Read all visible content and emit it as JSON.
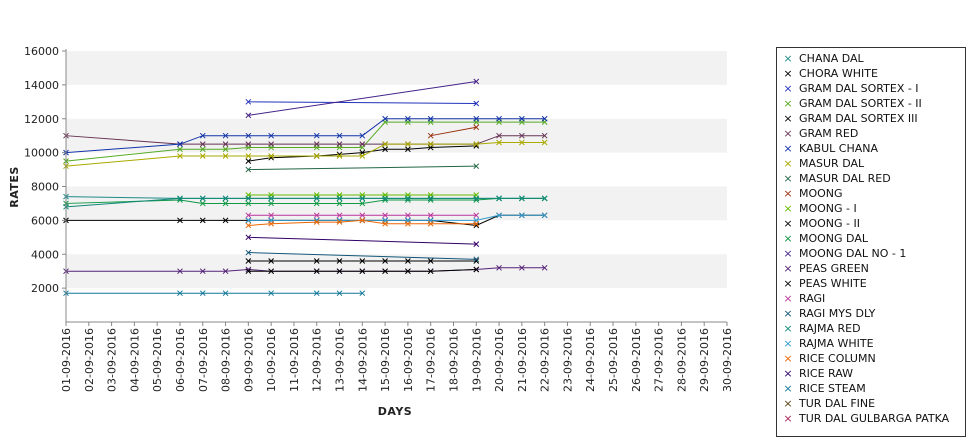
{
  "chart_data": {
    "type": "line",
    "xlabel": "DAYS",
    "ylabel": "RATES",
    "ylim": [
      0,
      16000
    ],
    "yticks": [
      2000,
      4000,
      6000,
      8000,
      10000,
      12000,
      14000,
      16000
    ],
    "grid": "alternating horizontal bands",
    "legend_position": "right",
    "categories": [
      "01-09-2016",
      "02-09-2016",
      "03-09-2016",
      "04-09-2016",
      "05-09-2016",
      "06-09-2016",
      "07-09-2016",
      "08-09-2016",
      "09-09-2016",
      "10-09-2016",
      "11-09-2016",
      "12-09-2016",
      "13-09-2016",
      "14-09-2016",
      "15-09-2016",
      "16-09-2016",
      "17-09-2016",
      "18-09-2016",
      "19-09-2016",
      "20-09-2016",
      "21-09-2016",
      "22-09-2016",
      "23-09-2016",
      "24-09-2016",
      "25-09-2016",
      "26-09-2016",
      "27-09-2016",
      "28-09-2016",
      "29-09-2016",
      "30-09-2016"
    ],
    "series": [
      {
        "name": "CHANA DAL",
        "color": "#1f8a8a",
        "values": [
          7400,
          null,
          null,
          null,
          null,
          7300,
          7300,
          7300,
          7300,
          7300,
          null,
          7300,
          7300,
          7300,
          7300,
          7300,
          7300,
          null,
          7300,
          7300,
          7300,
          7300,
          null,
          null,
          null,
          null,
          null,
          null,
          null,
          null
        ]
      },
      {
        "name": "CHORA WHITE",
        "color": "#000000",
        "values": [
          null,
          null,
          null,
          null,
          null,
          null,
          null,
          null,
          3600,
          3600,
          null,
          3600,
          3600,
          3600,
          3600,
          3600,
          3600,
          null,
          3600,
          null,
          null,
          null,
          null,
          null,
          null,
          null,
          null,
          null,
          null,
          null
        ]
      },
      {
        "name": "GRAM DAL SORTEX - I",
        "color": "#2233bb",
        "values": [
          null,
          null,
          null,
          null,
          null,
          null,
          null,
          null,
          13000,
          null,
          null,
          null,
          null,
          null,
          null,
          null,
          null,
          null,
          12900,
          null,
          null,
          null,
          null,
          null,
          null,
          null,
          null,
          null,
          null,
          null
        ]
      },
      {
        "name": "GRAM DAL SORTEX - II",
        "color": "#55aa22",
        "values": [
          9500,
          null,
          null,
          null,
          null,
          10200,
          10200,
          10200,
          10300,
          10300,
          null,
          10300,
          10300,
          10300,
          11800,
          11800,
          11800,
          null,
          11800,
          11800,
          11800,
          11800,
          null,
          null,
          null,
          null,
          null,
          null,
          null,
          null
        ]
      },
      {
        "name": "GRAM DAL SORTEX III",
        "color": "#000000",
        "values": [
          null,
          null,
          null,
          null,
          null,
          null,
          null,
          null,
          9500,
          9700,
          null,
          9800,
          9900,
          10000,
          10200,
          10200,
          10300,
          null,
          10400,
          null,
          null,
          null,
          null,
          null,
          null,
          null,
          null,
          null,
          null,
          null
        ]
      },
      {
        "name": "GRAM RED",
        "color": "#663355",
        "values": [
          11000,
          null,
          null,
          null,
          null,
          10500,
          10500,
          10500,
          10500,
          10500,
          null,
          10500,
          10500,
          10500,
          10500,
          10500,
          10500,
          null,
          10500,
          11000,
          11000,
          11000,
          null,
          null,
          null,
          null,
          null,
          null,
          null,
          null
        ]
      },
      {
        "name": "KABUL CHANA",
        "color": "#1133aa",
        "values": [
          10000,
          null,
          null,
          null,
          null,
          10500,
          11000,
          11000,
          11000,
          11000,
          null,
          11000,
          11000,
          11000,
          12000,
          12000,
          12000,
          null,
          12000,
          12000,
          12000,
          12000,
          null,
          null,
          null,
          null,
          null,
          null,
          null,
          null
        ]
      },
      {
        "name": "MASUR DAL",
        "color": "#aaaa00",
        "values": [
          9200,
          null,
          null,
          null,
          null,
          9800,
          9800,
          9800,
          9800,
          9800,
          null,
          9800,
          9800,
          9800,
          10500,
          10500,
          10500,
          null,
          10500,
          10600,
          10600,
          10600,
          null,
          null,
          null,
          null,
          null,
          null,
          null,
          null
        ]
      },
      {
        "name": "MASUR DAL RED",
        "color": "#226644",
        "values": [
          null,
          null,
          null,
          null,
          null,
          null,
          null,
          null,
          9000,
          null,
          null,
          null,
          null,
          null,
          null,
          null,
          null,
          null,
          9200,
          null,
          null,
          null,
          null,
          null,
          null,
          null,
          null,
          null,
          null,
          null
        ]
      },
      {
        "name": "MOONG",
        "color": "#993311",
        "values": [
          null,
          null,
          null,
          null,
          null,
          null,
          null,
          null,
          null,
          null,
          null,
          null,
          null,
          null,
          null,
          null,
          11000,
          null,
          11500,
          null,
          null,
          null,
          null,
          null,
          null,
          null,
          null,
          null,
          null,
          null
        ]
      },
      {
        "name": "MOONG - I",
        "color": "#66bb00",
        "values": [
          null,
          null,
          null,
          null,
          null,
          null,
          null,
          null,
          7500,
          7500,
          null,
          7500,
          7500,
          7500,
          7500,
          7500,
          7500,
          null,
          7500,
          null,
          null,
          null,
          null,
          null,
          null,
          null,
          null,
          null,
          null,
          null
        ]
      },
      {
        "name": "MOONG - II",
        "color": "#000000",
        "values": [
          6000,
          null,
          null,
          null,
          null,
          6000,
          6000,
          6000,
          6000,
          6000,
          null,
          6000,
          6000,
          6000,
          6000,
          6000,
          6000,
          null,
          5700,
          6300,
          6300,
          6300,
          null,
          null,
          null,
          null,
          null,
          null,
          null,
          null
        ]
      },
      {
        "name": "MOONG DAL",
        "color": "#119944",
        "values": [
          7000,
          null,
          null,
          null,
          null,
          7200,
          7000,
          7000,
          7000,
          7000,
          null,
          7000,
          7000,
          7000,
          7200,
          7200,
          7200,
          null,
          7200,
          7300,
          7300,
          7300,
          null,
          null,
          null,
          null,
          null,
          null,
          null,
          null
        ]
      },
      {
        "name": "MOONG DAL NO - 1",
        "color": "#442288",
        "values": [
          null,
          null,
          null,
          null,
          null,
          null,
          null,
          null,
          12200,
          null,
          null,
          null,
          null,
          null,
          null,
          null,
          null,
          null,
          14200,
          null,
          null,
          null,
          null,
          null,
          null,
          null,
          null,
          null,
          null,
          null
        ]
      },
      {
        "name": "PEAS GREEN",
        "color": "#552277",
        "values": [
          3000,
          null,
          null,
          null,
          null,
          3000,
          3000,
          3000,
          3100,
          3000,
          null,
          3000,
          3000,
          3000,
          3000,
          3000,
          3000,
          null,
          3100,
          3200,
          3200,
          3200,
          null,
          null,
          null,
          null,
          null,
          null,
          null,
          null
        ]
      },
      {
        "name": "PEAS WHITE",
        "color": "#000000",
        "values": [
          null,
          null,
          null,
          null,
          null,
          null,
          null,
          null,
          3000,
          3000,
          null,
          3000,
          3000,
          3000,
          3000,
          3000,
          3000,
          null,
          3100,
          null,
          null,
          null,
          null,
          null,
          null,
          null,
          null,
          null,
          null,
          null
        ]
      },
      {
        "name": "RAGI",
        "color": "#bb3399",
        "values": [
          null,
          null,
          null,
          null,
          null,
          null,
          null,
          null,
          6300,
          6300,
          null,
          6300,
          6300,
          6300,
          6300,
          6300,
          6300,
          null,
          6300,
          null,
          null,
          null,
          null,
          null,
          null,
          null,
          null,
          null,
          null,
          null
        ]
      },
      {
        "name": "RAGI MYS DLY",
        "color": "#115577",
        "values": [
          null,
          null,
          null,
          null,
          null,
          null,
          null,
          null,
          4100,
          null,
          null,
          null,
          null,
          null,
          null,
          null,
          null,
          null,
          3700,
          null,
          null,
          null,
          null,
          null,
          null,
          null,
          null,
          null,
          null,
          null
        ]
      },
      {
        "name": "RAJMA RED",
        "color": "#118877",
        "values": [
          6800,
          null,
          null,
          null,
          null,
          7300,
          7300,
          7300,
          7300,
          7300,
          null,
          7300,
          7300,
          7300,
          7300,
          7300,
          7300,
          null,
          7300,
          7300,
          7300,
          7300,
          null,
          null,
          null,
          null,
          null,
          null,
          null,
          null
        ]
      },
      {
        "name": "RAJMA WHITE",
        "color": "#3399cc",
        "values": [
          null,
          null,
          null,
          null,
          null,
          null,
          null,
          null,
          6000,
          6000,
          null,
          6000,
          6000,
          6000,
          6000,
          6000,
          6000,
          null,
          6000,
          6300,
          6300,
          6300,
          null,
          null,
          null,
          null,
          null,
          null,
          null,
          null
        ]
      },
      {
        "name": "RICE COLUMN",
        "color": "#ee6600",
        "values": [
          null,
          null,
          null,
          null,
          null,
          null,
          null,
          null,
          5700,
          5800,
          null,
          5900,
          5900,
          6000,
          5800,
          5800,
          5800,
          null,
          5800,
          null,
          null,
          null,
          null,
          null,
          null,
          null,
          null,
          null,
          null,
          null
        ]
      },
      {
        "name": "RICE RAW",
        "color": "#330066",
        "values": [
          null,
          null,
          null,
          null,
          null,
          null,
          null,
          null,
          5000,
          null,
          null,
          null,
          null,
          null,
          null,
          null,
          null,
          null,
          4600,
          null,
          null,
          null,
          null,
          null,
          null,
          null,
          null,
          null,
          null,
          null
        ]
      },
      {
        "name": "RICE STEAM",
        "color": "#117799",
        "values": [
          1700,
          null,
          null,
          null,
          null,
          1700,
          1700,
          1700,
          null,
          1700,
          null,
          1700,
          1700,
          1700,
          null,
          null,
          null,
          null,
          null,
          null,
          null,
          null,
          null,
          null,
          null,
          null,
          null,
          null,
          null,
          null
        ]
      },
      {
        "name": "TUR DAL FINE",
        "color": "#554411",
        "values": [
          null,
          null,
          null,
          null,
          null,
          null,
          null,
          null,
          null,
          null,
          null,
          null,
          null,
          null,
          null,
          null,
          null,
          null,
          null,
          null,
          null,
          null,
          null,
          null,
          null,
          null,
          null,
          null,
          null,
          null
        ]
      },
      {
        "name": "TUR DAL GULBARGA PATKA",
        "color": "#aa2255",
        "values": [
          null,
          null,
          null,
          null,
          null,
          null,
          null,
          null,
          null,
          null,
          null,
          null,
          null,
          null,
          null,
          null,
          null,
          null,
          null,
          null,
          null,
          null,
          null,
          null,
          null,
          null,
          null,
          null,
          null,
          null
        ]
      }
    ]
  }
}
